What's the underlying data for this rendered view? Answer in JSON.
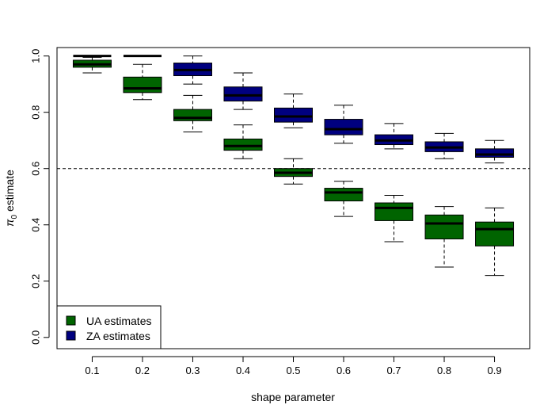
{
  "chart_data": {
    "type": "boxplot",
    "title": "",
    "xlabel": "shape parameter",
    "ylabel_prefix": "π",
    "ylabel_sub": "0",
    "ylabel_suffix": " estimate",
    "ylim": [
      -0.04,
      1.03
    ],
    "yticks": [
      "0.0",
      "0.2",
      "0.4",
      "0.6",
      "0.8",
      "1.0"
    ],
    "categories": [
      "0.1",
      "0.2",
      "0.3",
      "0.4",
      "0.5",
      "0.6",
      "0.7",
      "0.8",
      "0.9"
    ],
    "reference_line": 0.6,
    "series": [
      {
        "name": "UA estimates",
        "color": "#006400",
        "boxes": [
          {
            "min": 0.94,
            "q1": 0.96,
            "median": 0.97,
            "q3": 0.985,
            "max": 0.995
          },
          {
            "min": 0.845,
            "q1": 0.87,
            "median": 0.885,
            "q3": 0.925,
            "max": 0.97
          },
          {
            "min": 0.73,
            "q1": 0.77,
            "median": 0.78,
            "q3": 0.81,
            "max": 0.86
          },
          {
            "min": 0.635,
            "q1": 0.665,
            "median": 0.68,
            "q3": 0.705,
            "max": 0.755
          },
          {
            "min": 0.545,
            "q1": 0.572,
            "median": 0.585,
            "q3": 0.6,
            "max": 0.635
          },
          {
            "min": 0.43,
            "q1": 0.485,
            "median": 0.515,
            "q3": 0.53,
            "max": 0.555
          },
          {
            "min": 0.34,
            "q1": 0.415,
            "median": 0.46,
            "q3": 0.478,
            "max": 0.505
          },
          {
            "min": 0.25,
            "q1": 0.35,
            "median": 0.405,
            "q3": 0.435,
            "max": 0.465
          },
          {
            "min": 0.22,
            "q1": 0.325,
            "median": 0.385,
            "q3": 0.41,
            "max": 0.46
          }
        ]
      },
      {
        "name": "ZA estimates",
        "color": "#00007F",
        "boxes": [
          {
            "min": 1.0,
            "q1": 1.0,
            "median": 1.0,
            "q3": 1.0,
            "max": 1.0
          },
          {
            "min": 1.0,
            "q1": 1.0,
            "median": 1.0,
            "q3": 1.0,
            "max": 1.0
          },
          {
            "min": 0.9,
            "q1": 0.93,
            "median": 0.95,
            "q3": 0.975,
            "max": 1.0
          },
          {
            "min": 0.81,
            "q1": 0.84,
            "median": 0.86,
            "q3": 0.89,
            "max": 0.94
          },
          {
            "min": 0.745,
            "q1": 0.765,
            "median": 0.785,
            "q3": 0.815,
            "max": 0.865
          },
          {
            "min": 0.69,
            "q1": 0.72,
            "median": 0.74,
            "q3": 0.775,
            "max": 0.825
          },
          {
            "min": 0.67,
            "q1": 0.685,
            "median": 0.7,
            "q3": 0.72,
            "max": 0.76
          },
          {
            "min": 0.635,
            "q1": 0.66,
            "median": 0.675,
            "q3": 0.695,
            "max": 0.725
          },
          {
            "min": 0.62,
            "q1": 0.64,
            "median": 0.65,
            "q3": 0.67,
            "max": 0.7
          }
        ]
      }
    ],
    "legend": {
      "position": "bottom-left",
      "entries": [
        {
          "label": "UA estimates",
          "color": "#006400"
        },
        {
          "label": "ZA estimates",
          "color": "#00007F"
        }
      ]
    }
  }
}
